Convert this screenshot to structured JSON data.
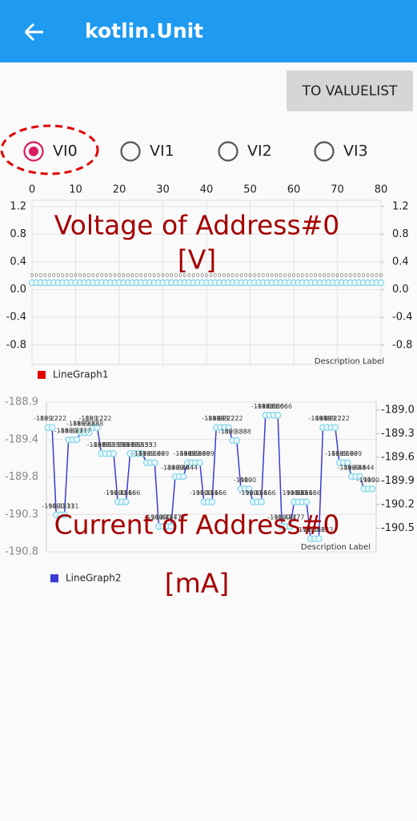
{
  "app_bar": {
    "title": "kotlin.Unit"
  },
  "button": "TO VALUELIST",
  "radio": {
    "options": [
      "VI0",
      "VI1",
      "VI2",
      "VI3"
    ],
    "selected": 0
  },
  "chart_data": [
    {
      "type": "line",
      "annotations": [
        "Voltage of Address#0",
        "[V]"
      ],
      "description": "Description Label",
      "x": [
        0,
        1,
        2,
        3,
        4,
        5,
        6,
        7,
        8,
        9,
        10,
        11,
        12,
        13,
        14,
        15,
        16,
        17,
        18,
        19,
        20,
        21,
        22,
        23,
        24,
        25,
        26,
        27,
        28,
        29,
        30,
        31,
        32,
        33,
        34,
        35,
        36,
        37,
        38,
        39,
        40,
        41,
        42,
        43,
        44,
        45,
        46,
        47,
        48,
        49,
        50,
        51,
        52,
        53,
        54,
        55,
        56,
        57,
        58,
        59,
        60,
        61,
        62,
        63,
        64,
        65,
        66,
        67,
        68,
        69,
        70,
        71,
        72,
        73,
        74,
        75,
        76,
        77,
        78,
        79,
        80
      ],
      "series": [
        {
          "name": "LineGraph1",
          "color": "#e00000",
          "values": [
            0.1,
            0.1,
            0.1,
            0.1,
            0.1,
            0.1,
            0.1,
            0.1,
            0.1,
            0.1,
            0.1,
            0.1,
            0.1,
            0.1,
            0.1,
            0.1,
            0.1,
            0.1,
            0.1,
            0.1,
            0.1,
            0.1,
            0.1,
            0.1,
            0.1,
            0.1,
            0.1,
            0.1,
            0.1,
            0.1,
            0.1,
            0.1,
            0.1,
            0.1,
            0.1,
            0.1,
            0.1,
            0.1,
            0.1,
            0.1,
            0.1,
            0.1,
            0.1,
            0.1,
            0.1,
            0.1,
            0.1,
            0.1,
            0.1,
            0.1,
            0.1,
            0.1,
            0.1,
            0.1,
            0.1,
            0.1,
            0.1,
            0.1,
            0.1,
            0.1,
            0.1,
            0.1,
            0.1,
            0.1,
            0.1,
            0.1,
            0.1,
            0.1,
            0.1,
            0.1,
            0.1,
            0.1,
            0.1,
            0.1,
            0.1,
            0.1,
            0.1,
            0.1,
            0.1,
            0.1,
            0.1
          ],
          "value_labels": [
            "0",
            "0",
            "0",
            "0",
            "0",
            "0",
            "0",
            "0",
            "0",
            "0",
            "0",
            "0",
            "0",
            "0",
            "0",
            "0",
            "0",
            "0",
            "0",
            "0",
            "0",
            "0",
            "0",
            "0",
            "0",
            "0",
            "0",
            "0",
            "0",
            "0",
            "0",
            "0",
            "0",
            "0",
            "0",
            "0",
            "0",
            "0",
            "0",
            "0",
            "0",
            "0",
            "0",
            "0",
            "0",
            "0",
            "0",
            "0",
            "0",
            "0",
            "0",
            "0",
            "0",
            "0",
            "0",
            "0",
            "0",
            "0",
            "0",
            "0",
            "0",
            "0",
            "0",
            "0",
            "0",
            "0",
            "0",
            "0",
            "0",
            "0",
            "0",
            "0",
            "0",
            "0",
            "0",
            "0",
            "0",
            "0",
            "0",
            "0",
            "0"
          ]
        }
      ],
      "marker_color": "#8fd8e8",
      "xlim": [
        0,
        80
      ],
      "xticks": [
        0,
        10,
        20,
        30,
        40,
        50,
        60,
        70,
        80
      ],
      "ylim": [
        -1.08,
        1.29
      ],
      "yticks": [
        1.2,
        0.8,
        0.4,
        {
          "value": 0,
          "label": "0.0"
        },
        -0.4,
        -0.8
      ],
      "y2lim": [
        -1.08,
        1.29
      ],
      "y2ticks": [
        1.2,
        0.8,
        0.4,
        {
          "value": 0,
          "label": "0.0"
        },
        -0.4,
        -0.8
      ],
      "grid": true
    },
    {
      "type": "line",
      "annotations": [
        "Current of Address#0",
        "[mA]"
      ],
      "description": "Description Label",
      "series": [
        {
          "name": "LineGraph2",
          "color": "#3b3bd6",
          "values": [
            -189.222,
            -189.222,
            -190.331,
            -190.331,
            -190.331,
            -189.377,
            -189.377,
            -189.377,
            -189.288,
            -189.288,
            -189.288,
            -189.222,
            -189.222,
            -189.553,
            -189.553,
            -189.553,
            -189.553,
            -190.166,
            -190.166,
            -190.166,
            -189.553,
            -189.553,
            -189.553,
            -189.553,
            -189.669,
            -189.669,
            -189.669,
            -190.477,
            -190.477,
            -190.477,
            -190.477,
            -189.844,
            -189.844,
            -189.844,
            -189.669,
            -189.669,
            -189.669,
            -189.669,
            -190.166,
            -190.166,
            -190.166,
            -189.222,
            -189.222,
            -189.222,
            -189.222,
            -189.388,
            -189.388,
            -190,
            -190,
            -190,
            -190.166,
            -190.166,
            -190.166,
            -189.066,
            -189.066,
            -189.066,
            -189.066,
            -190.477,
            -190.477,
            -190.477,
            -190.166,
            -190.166,
            -190.166,
            -190.166,
            -190.633,
            -190.633,
            -190.633,
            -189.222,
            -189.222,
            -189.222,
            -189.222,
            -189.669,
            -189.669,
            -189.669,
            -189.844,
            -189.844,
            -189.844,
            -190,
            -190,
            -190
          ]
        }
      ],
      "marker_color": "#8fd8e8",
      "ylim": [
        -190.8,
        -188.9
      ],
      "yticks": [
        -188.9,
        {
          "value": -189.375,
          "label": "-189.4"
        },
        {
          "value": -189.85,
          "label": "-189.8"
        },
        {
          "value": -190.325,
          "label": "-190.3"
        },
        -190.8
      ],
      "y2lim": [
        -190.8,
        -188.9
      ],
      "y2ticks": [
        {
          "value": -189,
          "label": "-189.0"
        },
        -189.3,
        -189.6,
        -189.9,
        -190.2,
        -190.5
      ],
      "grid": true
    }
  ]
}
